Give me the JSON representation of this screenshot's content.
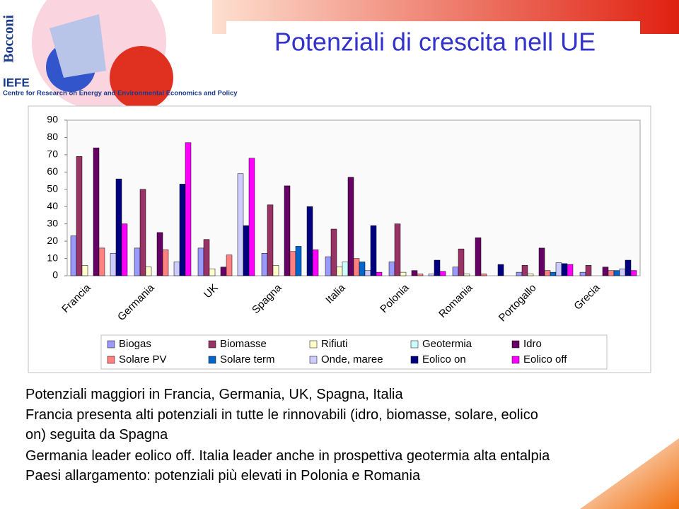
{
  "logo": {
    "university": "Bocconi",
    "institute": "IEFE",
    "institute_full": "Centre for Research on Energy and Environmental Economics and Policy"
  },
  "slide": {
    "title": "Potenziali di crescita nell UE"
  },
  "chart_data": {
    "type": "bar",
    "categories": [
      "Francia",
      "Germania",
      "UK",
      "Spagna",
      "Italia",
      "Polonia",
      "Romania",
      "Portogallo",
      "Grecia"
    ],
    "series": [
      {
        "name": "Biogas",
        "color": "#9999ff",
        "values": [
          23,
          16,
          16,
          13,
          11,
          8,
          5,
          2,
          2
        ]
      },
      {
        "name": "Biomasse",
        "color": "#993366",
        "values": [
          69,
          50,
          21,
          41,
          27,
          30,
          15.5,
          6,
          6
        ]
      },
      {
        "name": "Rifiuti",
        "color": "#ffffcc",
        "values": [
          6,
          5,
          4,
          6,
          5,
          2,
          1,
          1,
          0
        ]
      },
      {
        "name": "Geotermia",
        "color": "#ccffff",
        "values": [
          0,
          0,
          0,
          0,
          8,
          0,
          0,
          0,
          0
        ]
      },
      {
        "name": "Idro",
        "color": "#660066",
        "values": [
          74,
          25,
          5,
          52,
          57,
          3,
          22,
          16,
          5
        ]
      },
      {
        "name": "Solare PV",
        "color": "#ff8080",
        "values": [
          16,
          15,
          12,
          14,
          10,
          1,
          1,
          3,
          3
        ]
      },
      {
        "name": "Solare term",
        "color": "#0066cc",
        "values": [
          0,
          0,
          0,
          17,
          8,
          0,
          0,
          2,
          3
        ]
      },
      {
        "name": "Onde, maree",
        "color": "#ccccff",
        "values": [
          13,
          8,
          59,
          0,
          3,
          1,
          0,
          7.5,
          4
        ]
      },
      {
        "name": "Eolico on",
        "color": "#000080",
        "values": [
          56,
          53,
          29,
          40,
          29,
          9,
          6.5,
          7,
          9
        ]
      },
      {
        "name": "Eolico off",
        "color": "#ff00ff",
        "values": [
          30,
          77,
          68,
          15,
          2,
          2.5,
          0,
          6.5,
          3
        ]
      }
    ],
    "ylim": [
      0,
      90
    ],
    "yticks": [
      0,
      10,
      20,
      30,
      40,
      50,
      60,
      70,
      80,
      90
    ],
    "grid": false
  },
  "body": {
    "lines": [
      "Potenziali maggiori in Francia, Germania, UK, Spagna, Italia",
      "Francia presenta alti potenziali in tutte le rinnovabili (idro, biomasse, solare, eolico",
      "on) seguita da Spagna",
      "Germania leader eolico off. Italia leader anche in prospettiva geotermia alta entalpia",
      "Paesi allargamento: potenziali più elevati in Polonia e Romania"
    ]
  }
}
